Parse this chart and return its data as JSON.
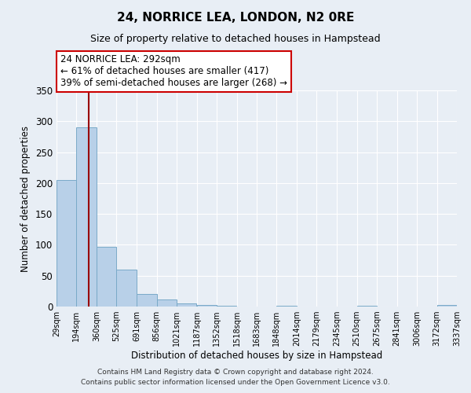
{
  "title": "24, NORRICE LEA, LONDON, N2 0RE",
  "subtitle": "Size of property relative to detached houses in Hampstead",
  "xlabel": "Distribution of detached houses by size in Hampstead",
  "ylabel": "Number of detached properties",
  "bar_left_edges": [
    29,
    194,
    360,
    525,
    691,
    856,
    1021,
    1187,
    1352,
    1518,
    1683,
    1848,
    2014,
    2179,
    2345,
    2510,
    2675,
    2841,
    3006,
    3172
  ],
  "bar_heights": [
    205,
    290,
    97,
    60,
    21,
    12,
    5,
    2,
    1,
    0,
    0,
    1,
    0,
    0,
    0,
    1,
    0,
    0,
    0,
    2
  ],
  "bin_width": 165,
  "tick_labels": [
    "29sqm",
    "194sqm",
    "360sqm",
    "525sqm",
    "691sqm",
    "856sqm",
    "1021sqm",
    "1187sqm",
    "1352sqm",
    "1518sqm",
    "1683sqm",
    "1848sqm",
    "2014sqm",
    "2179sqm",
    "2345sqm",
    "2510sqm",
    "2675sqm",
    "2841sqm",
    "3006sqm",
    "3172sqm",
    "3337sqm"
  ],
  "bar_color": "#b8d0e8",
  "bar_edge_color": "#7aaac8",
  "vline_x": 292,
  "vline_color": "#990000",
  "annotation_title": "24 NORRICE LEA: 292sqm",
  "annotation_line1": "← 61% of detached houses are smaller (417)",
  "annotation_line2": "39% of semi-detached houses are larger (268) →",
  "annotation_box_color": "#ffffff",
  "annotation_box_edge": "#cc0000",
  "ylim": [
    0,
    350
  ],
  "yticks": [
    0,
    50,
    100,
    150,
    200,
    250,
    300,
    350
  ],
  "footer1": "Contains HM Land Registry data © Crown copyright and database right 2024.",
  "footer2": "Contains public sector information licensed under the Open Government Licence v3.0.",
  "background_color": "#e8eef5",
  "grid_color": "#ffffff"
}
